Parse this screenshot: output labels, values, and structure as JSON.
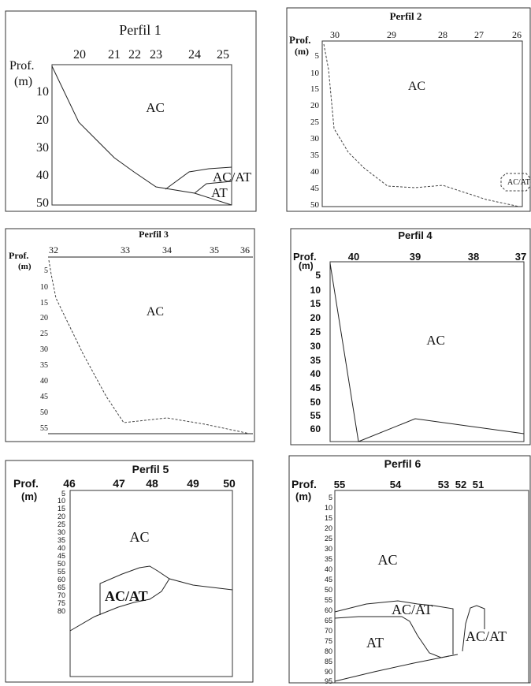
{
  "panels": [
    {
      "title": "Perfil 1",
      "depth_label_1": "Prof.",
      "depth_label_2": "(m)",
      "stations": [
        "20",
        "21",
        "22",
        "23",
        "24",
        "25"
      ],
      "depth_ticks": [
        "10",
        "20",
        "30",
        "40",
        "50"
      ],
      "units": [
        "AC",
        "AC/AT",
        "AT"
      ]
    },
    {
      "title": "Perfil 2",
      "depth_label_1": "Prof.",
      "depth_label_2": "(m)",
      "stations": [
        "30",
        "29",
        "28",
        "27",
        "26"
      ],
      "depth_ticks": [
        "5",
        "10",
        "15",
        "20",
        "25",
        "30",
        "35",
        "40",
        "45",
        "50"
      ],
      "units": [
        "AC",
        "AC/AT"
      ]
    },
    {
      "title": "Perfil 3",
      "depth_label_1": "Prof.",
      "depth_label_2": "(m)",
      "stations": [
        "32",
        "33",
        "34",
        "35",
        "36"
      ],
      "depth_ticks": [
        "5",
        "10",
        "15",
        "20",
        "25",
        "30",
        "35",
        "40",
        "45",
        "50",
        "55"
      ],
      "units": [
        "AC"
      ]
    },
    {
      "title": "Perfil 4",
      "depth_label_1": "Prof.",
      "depth_label_2": "(m)",
      "stations": [
        "40",
        "39",
        "38",
        "37"
      ],
      "depth_ticks": [
        "5",
        "10",
        "15",
        "20",
        "25",
        "30",
        "35",
        "40",
        "45",
        "50",
        "55",
        "60"
      ],
      "units": [
        "AC"
      ]
    },
    {
      "title": "Perfil 5",
      "depth_label_1": "Prof.",
      "depth_label_2": "(m)",
      "stations": [
        "46",
        "47",
        "48",
        "49",
        "50"
      ],
      "depth_ticks": [
        "5",
        "10",
        "15",
        "20",
        "25",
        "30",
        "35",
        "40",
        "45",
        "50",
        "55",
        "60",
        "65",
        "70",
        "75",
        "80"
      ],
      "units": [
        "AC",
        "AC/AT"
      ]
    },
    {
      "title": "Perfil 6",
      "depth_label_1": "Prof.",
      "depth_label_2": "(m)",
      "stations": [
        "55",
        "54",
        "53",
        "52",
        "51"
      ],
      "depth_ticks": [
        "5",
        "10",
        "15",
        "20",
        "25",
        "30",
        "35",
        "40",
        "45",
        "50",
        "55",
        "60",
        "65",
        "70",
        "75",
        "80",
        "85",
        "90",
        "95"
      ],
      "units": [
        "AC",
        "AC/AT",
        "AT",
        "AC/AT"
      ]
    }
  ]
}
